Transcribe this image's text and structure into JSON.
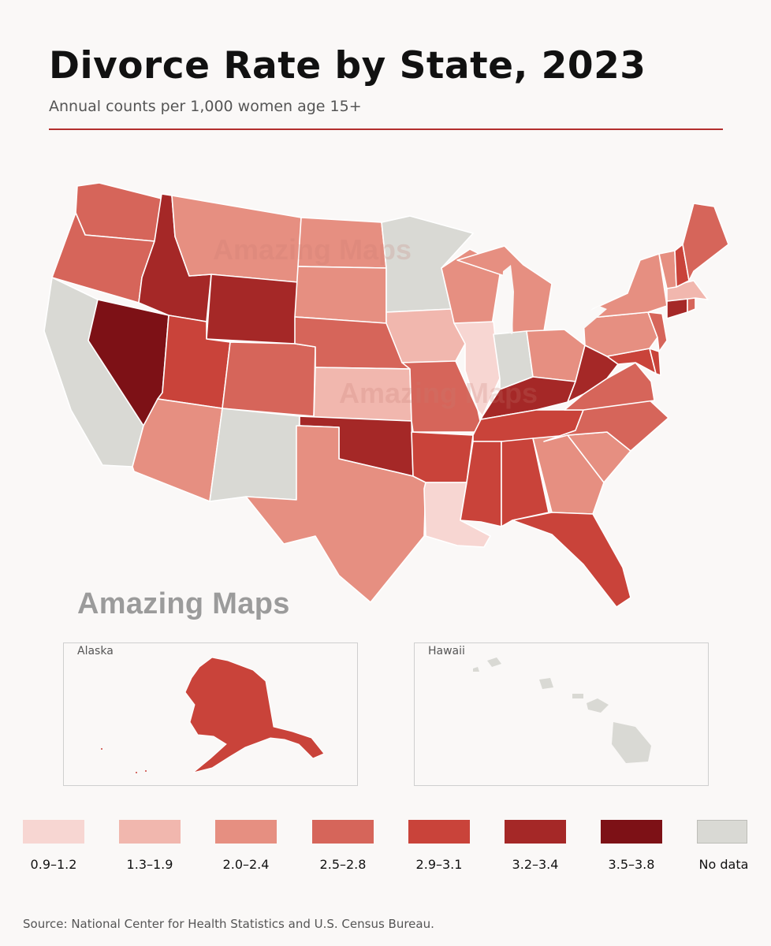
{
  "title": "Divorce Rate by State, 2023",
  "subtitle": "Annual counts per 1,000 women age 15+",
  "source": "Source: National Center for Health Statistics and U.S. Census Bureau.",
  "watermark": "Amazing Maps",
  "insets": {
    "alaska": "Alaska",
    "hawaii": "Hawaii"
  },
  "colors": {
    "c1": "#f7d6d2",
    "c2": "#f1b7ae",
    "c3": "#e68f81",
    "c4": "#d6655a",
    "c5": "#c9433a",
    "c6": "#a52827",
    "c7": "#7d1116",
    "nodata": "#d9d9d4",
    "accent_rule": "#b32e2e"
  },
  "legend": [
    {
      "label": "0.9–1.2",
      "color": "#f7d6d2"
    },
    {
      "label": "1.3–1.9",
      "color": "#f1b7ae"
    },
    {
      "label": "2.0–2.4",
      "color": "#e68f81"
    },
    {
      "label": "2.5–2.8",
      "color": "#d6655a"
    },
    {
      "label": "2.9–3.1",
      "color": "#c9433a"
    },
    {
      "label": "3.2–3.4",
      "color": "#a52827"
    },
    {
      "label": "3.5–3.8",
      "color": "#7d1116"
    },
    {
      "label": "No data",
      "color": "#d9d9d4"
    }
  ],
  "states": {
    "WA": "2.5–2.8",
    "OR": "2.5–2.8",
    "CA": "No data",
    "NV": "3.5–3.8",
    "ID": "3.2–3.4",
    "MT": "2.0–2.4",
    "WY": "3.2–3.4",
    "UT": "2.9–3.1",
    "AZ": "2.0–2.4",
    "CO": "2.5–2.8",
    "NM": "No data",
    "ND": "2.0–2.4",
    "SD": "2.0–2.4",
    "NE": "2.5–2.8",
    "KS": "1.3–1.9",
    "OK": "3.2–3.4",
    "TX": "2.0–2.4",
    "MN": "No data",
    "IA": "1.3–1.9",
    "MO": "2.5–2.8",
    "AR": "2.9–3.1",
    "LA": "0.9–1.2",
    "WI": "2.0–2.4",
    "IL": "0.9–1.2",
    "MI": "2.0–2.4",
    "IN": "No data",
    "OH": "2.0–2.4",
    "KY": "3.2–3.4",
    "TN": "2.9–3.1",
    "MS": "2.9–3.1",
    "AL": "2.9–3.1",
    "GA": "2.0–2.4",
    "FL": "2.9–3.1",
    "SC": "2.0–2.4",
    "NC": "2.5–2.8",
    "VA": "2.5–2.8",
    "WV": "3.2–3.4",
    "MD": "2.9–3.1",
    "DE": "2.9–3.1",
    "PA": "2.0–2.4",
    "NJ": "2.5–2.8",
    "NY": "2.0–2.4",
    "CT": "3.2–3.4",
    "RI": "2.5–2.8",
    "MA": "1.3–1.9",
    "VT": "2.0–2.4",
    "NH": "2.9–3.1",
    "ME": "2.5–2.8",
    "AK": "2.9–3.1",
    "HI": "No data"
  }
}
